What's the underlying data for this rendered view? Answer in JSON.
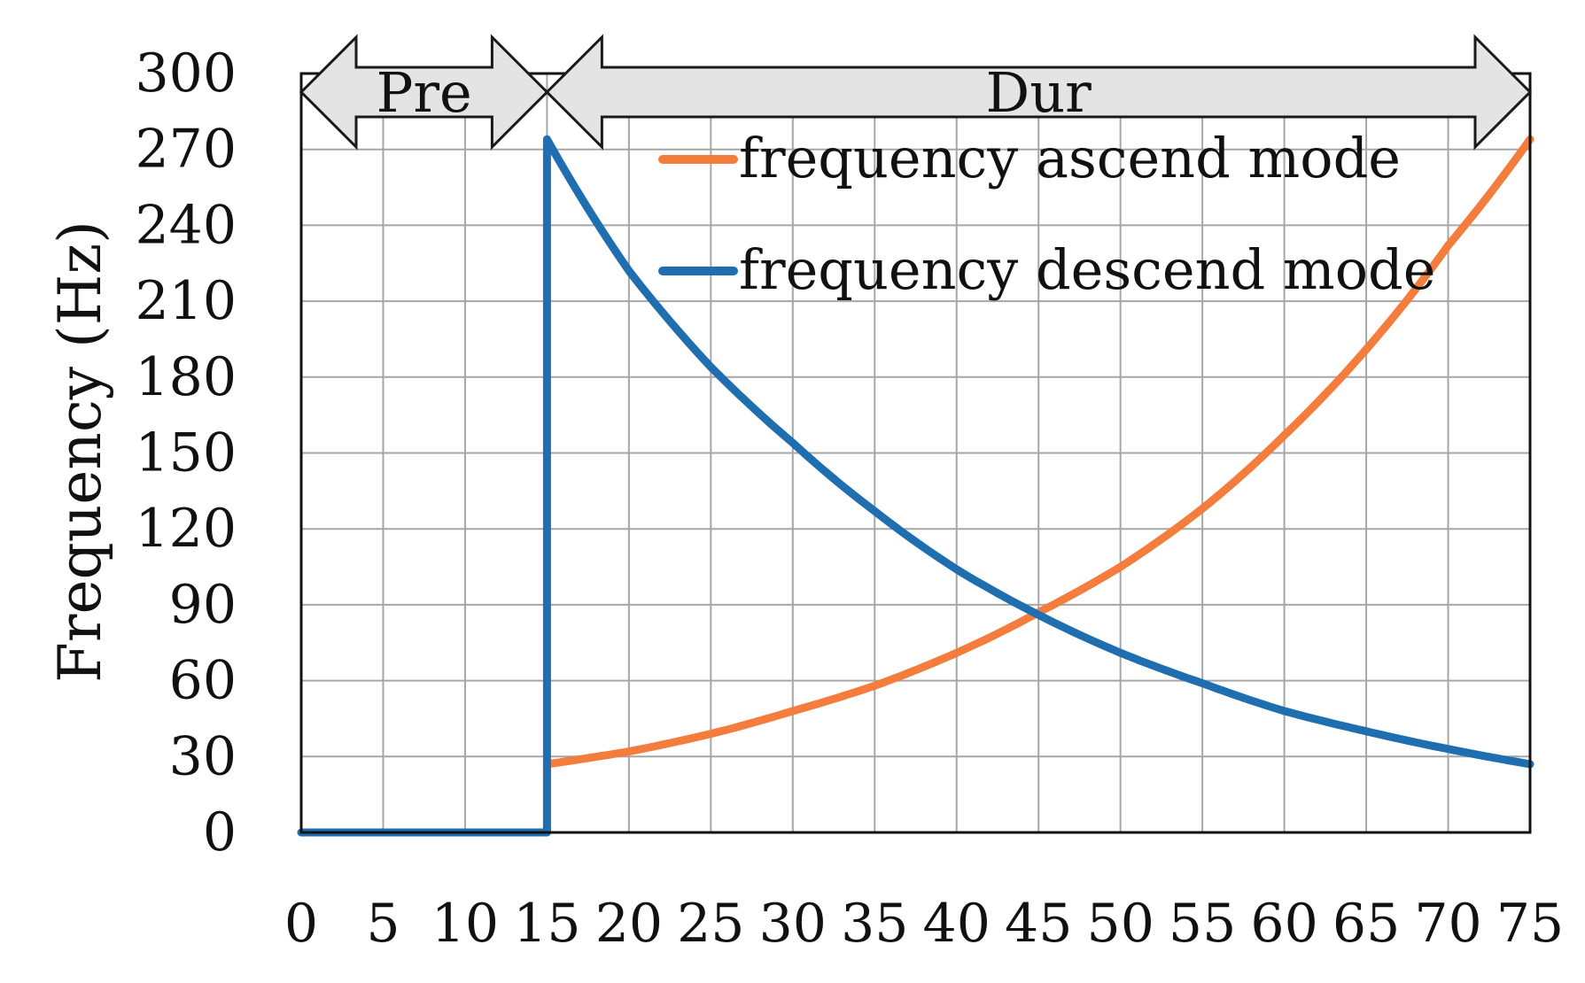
{
  "chart_data": {
    "type": "line",
    "ylabel": "Frequency (Hz)",
    "xlabel": "",
    "xlim": [
      0,
      75
    ],
    "ylim": [
      0,
      300
    ],
    "x_ticks": [
      0,
      5,
      10,
      15,
      20,
      25,
      30,
      35,
      40,
      45,
      50,
      55,
      60,
      65,
      70,
      75
    ],
    "y_ticks": [
      0,
      30,
      60,
      90,
      120,
      150,
      180,
      210,
      240,
      270,
      300
    ],
    "grid": true,
    "legend_position": "top-right",
    "phases": [
      {
        "label": "Pre",
        "x_start": 0,
        "x_end": 15
      },
      {
        "label": "Dur",
        "x_start": 15,
        "x_end": 75
      }
    ],
    "series": [
      {
        "name": "frequency ascend mode",
        "color": "#f47c3c",
        "x": [
          0,
          15,
          15,
          20,
          25,
          30,
          35,
          40,
          45,
          50,
          55,
          60,
          65,
          70,
          75
        ],
        "y": [
          0,
          0,
          27,
          32,
          39,
          48,
          58,
          71,
          87,
          105,
          128,
          157,
          191,
          232,
          274
        ]
      },
      {
        "name": "frequency descend mode",
        "color": "#1f6fb0",
        "x": [
          0,
          15,
          15,
          20,
          25,
          30,
          35,
          40,
          45,
          50,
          55,
          60,
          65,
          70,
          75
        ],
        "y": [
          0,
          0,
          274,
          222,
          184,
          154,
          127,
          104,
          86,
          71,
          59,
          48,
          40,
          33,
          27
        ]
      }
    ]
  }
}
